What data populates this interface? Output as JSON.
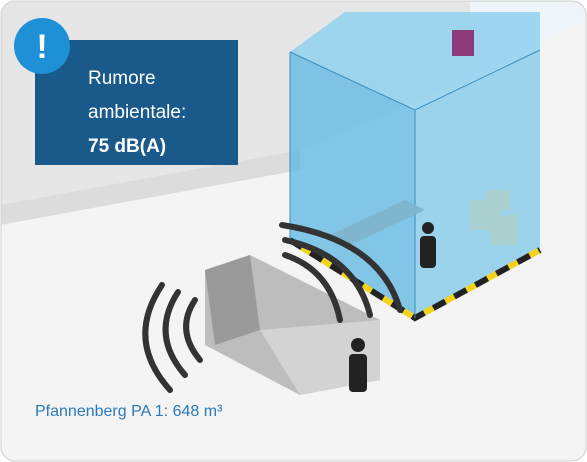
{
  "callout": {
    "icon": "!",
    "lines": [
      "Rumore",
      "ambientale:",
      "75 dB(A)"
    ]
  },
  "caption": "Pfannenberg PA 1: 648 m³"
}
